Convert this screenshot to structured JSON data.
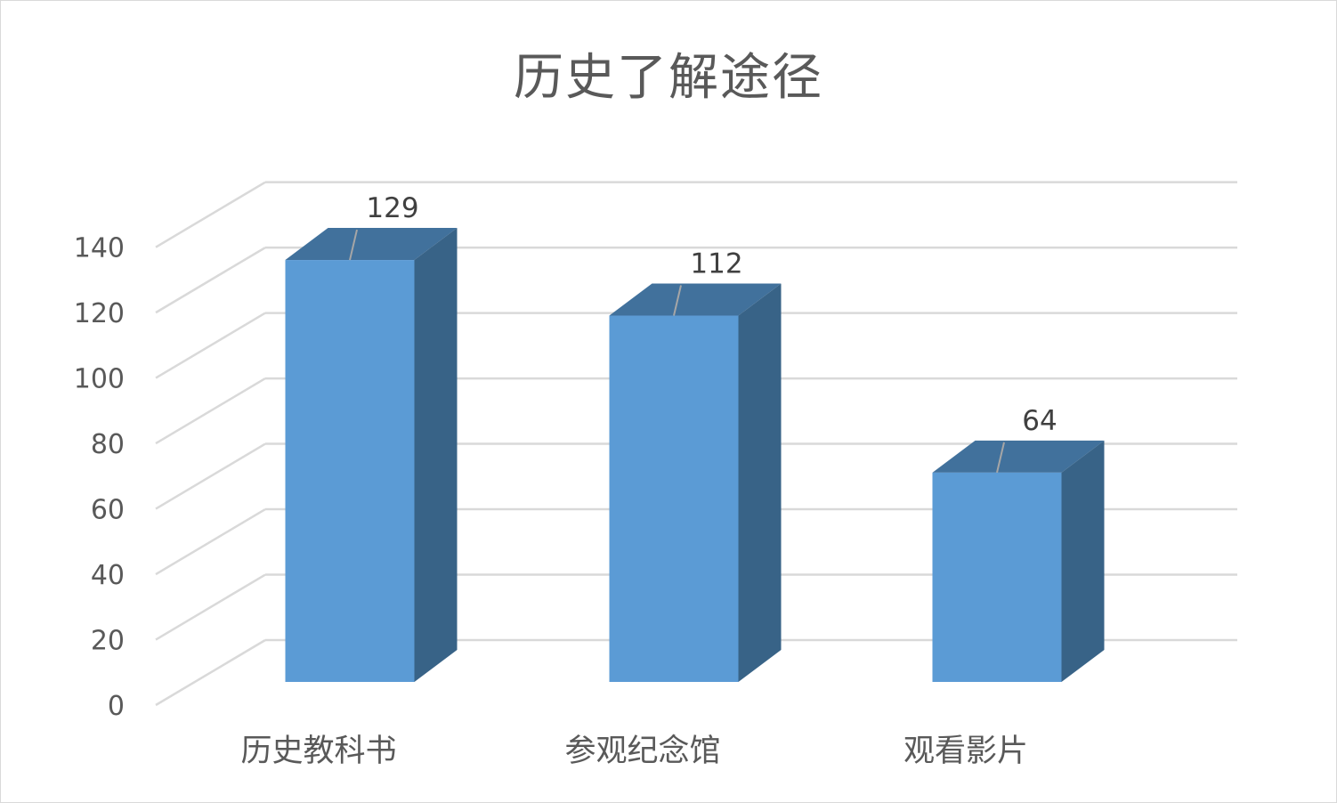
{
  "chart_data": {
    "type": "bar",
    "style": "3d-column",
    "title": "历史了解途径",
    "xlabel": "",
    "ylabel": "",
    "categories": [
      "历史教科书",
      "参观纪念馆",
      "观看影片"
    ],
    "values": [
      129,
      112,
      64
    ],
    "data_labels": [
      "129",
      "112",
      "64"
    ],
    "ylim": [
      0,
      140
    ],
    "yticks": [
      0,
      20,
      40,
      60,
      80,
      100,
      120,
      140
    ],
    "ytick_labels": [
      "0",
      "20",
      "40",
      "60",
      "80",
      "100",
      "120",
      "140"
    ],
    "grid": true,
    "legend": "none",
    "colors": {
      "bar_front": "#5b9bd5",
      "bar_side": "#386387",
      "bar_top": "#41719c",
      "gridline": "#d9d9d9",
      "text": "#595959"
    }
  }
}
